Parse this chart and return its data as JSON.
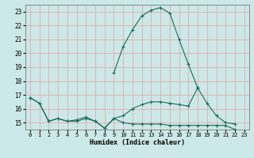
{
  "xlabel": "Humidex (Indice chaleur)",
  "x": [
    0,
    1,
    2,
    3,
    4,
    5,
    6,
    7,
    8,
    9,
    10,
    11,
    12,
    13,
    14,
    15,
    16,
    17,
    18,
    19,
    20,
    21,
    22,
    23
  ],
  "line2": [
    16.8,
    16.4,
    15.1,
    15.3,
    15.1,
    15.1,
    15.3,
    15.1,
    14.6,
    15.3,
    15.0,
    14.9,
    14.9,
    14.9,
    14.9,
    14.8,
    14.8,
    14.8,
    14.8,
    14.8,
    14.8,
    14.8,
    14.5,
    14.3
  ],
  "line3": [
    16.8,
    16.4,
    15.1,
    15.3,
    15.1,
    15.2,
    15.4,
    15.1,
    14.6,
    15.3,
    15.5,
    16.0,
    16.3,
    16.5,
    16.5,
    16.4,
    16.3,
    16.2,
    17.5,
    16.4,
    15.5,
    15.0,
    14.9,
    null
  ],
  "line4": [
    16.8,
    null,
    null,
    null,
    null,
    null,
    null,
    null,
    null,
    18.6,
    20.5,
    21.7,
    22.7,
    23.1,
    23.3,
    22.9,
    21.0,
    19.2,
    17.5,
    null,
    null,
    null,
    null,
    null
  ],
  "line_color": "#1a6b5a",
  "bg_color": "#cce8e8",
  "grid_color": "#e8a0a0",
  "ylim": [
    14.5,
    23.5
  ],
  "xlim": [
    -0.5,
    23.5
  ],
  "yticks": [
    15,
    16,
    17,
    18,
    19,
    20,
    21,
    22,
    23
  ],
  "xticks": [
    0,
    1,
    2,
    3,
    4,
    5,
    6,
    7,
    8,
    9,
    10,
    11,
    12,
    13,
    14,
    15,
    16,
    17,
    18,
    19,
    20,
    21,
    22,
    23
  ]
}
